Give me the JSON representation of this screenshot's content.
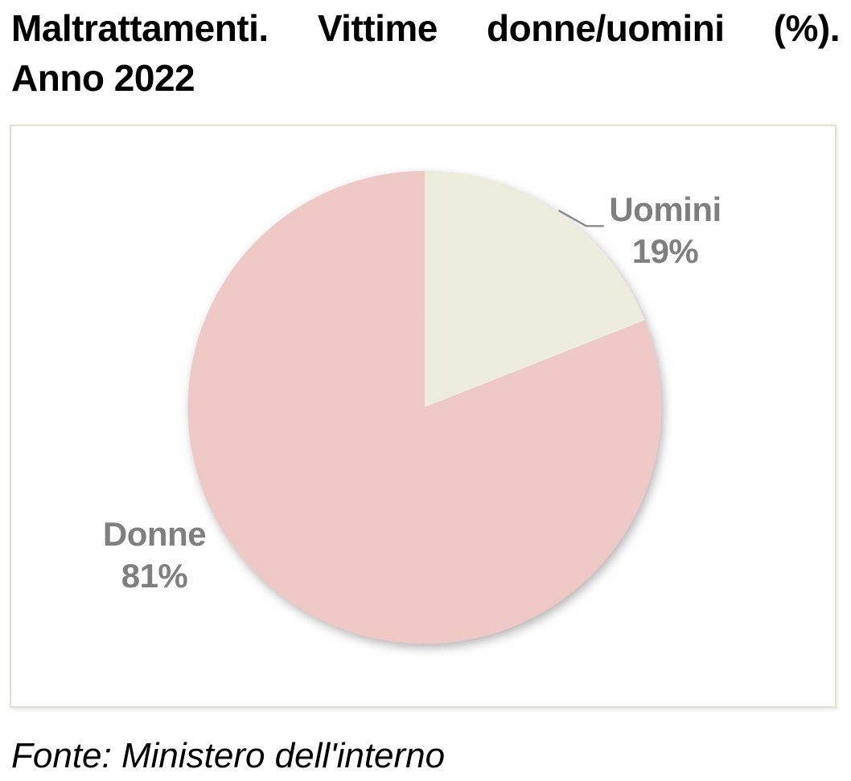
{
  "title": {
    "line1": "Maltrattamenti. Vittime donne/uomini (%).",
    "line2": "Anno 2022"
  },
  "chart_data": {
    "type": "pie",
    "title": "Maltrattamenti. Vittime donne/uomini (%). Anno 2022",
    "categories": [
      "Uomini",
      "Donne"
    ],
    "values": [
      19,
      81
    ],
    "unit": "%",
    "start_angle_deg": 0,
    "direction": "clockwise",
    "slice_colors": [
      "#ededde",
      "#eec9c5"
    ],
    "label_color": "#7f7f7f",
    "legend_position": "none",
    "data_labels": [
      {
        "name": "Uomini",
        "value": "19%",
        "position": "outside-top-right",
        "leader_line": true
      },
      {
        "name": "Donne",
        "value": "81%",
        "position": "outside-left",
        "leader_line": false
      }
    ],
    "source": "Fonte: Ministero dell'interno"
  },
  "footer": {
    "text": "Fonte: Ministero dell'interno"
  },
  "frame": {
    "border_color": "#e3e0cb",
    "background": "#ffffff"
  }
}
